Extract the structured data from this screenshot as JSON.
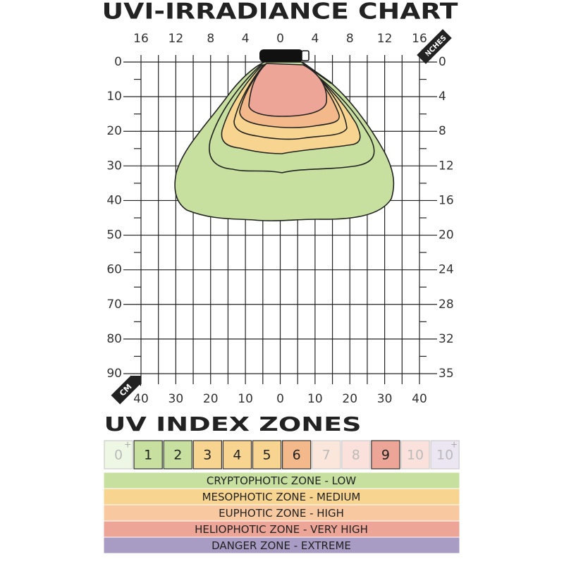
{
  "title": "UVI-IRRADIANCE CHART",
  "axes": {
    "top_inches": [
      16,
      12,
      8,
      4,
      0,
      4,
      8,
      12,
      16
    ],
    "inches_unit": "INCHES",
    "left_cm": [
      0,
      10,
      20,
      30,
      40,
      50,
      60,
      70,
      80,
      90
    ],
    "right_inches": [
      0,
      4,
      8,
      12,
      16,
      20,
      24,
      28,
      32,
      35
    ],
    "bottom_cm": [
      40,
      30,
      20,
      10,
      0,
      10,
      20,
      30,
      40
    ],
    "cm_unit": "CM"
  },
  "zones_title": "UV INDEX ZONES",
  "index_scale": [
    {
      "label": "0",
      "plus": "+"
    },
    {
      "label": "1"
    },
    {
      "label": "2"
    },
    {
      "label": "3"
    },
    {
      "label": "4"
    },
    {
      "label": "5"
    },
    {
      "label": "6"
    },
    {
      "label": "7"
    },
    {
      "label": "8"
    },
    {
      "label": "9"
    },
    {
      "label": "10"
    },
    {
      "label": "10",
      "plus": "+"
    }
  ],
  "zones": [
    "CRYPTOPHOTIC ZONE - LOW",
    "MESOPHOTIC ZONE - MEDIUM",
    "EUPHOTIC ZONE - HIGH",
    "HELIOPHOTIC ZONE - VERY HIGH",
    "DANGER ZONE - EXTREME"
  ]
}
